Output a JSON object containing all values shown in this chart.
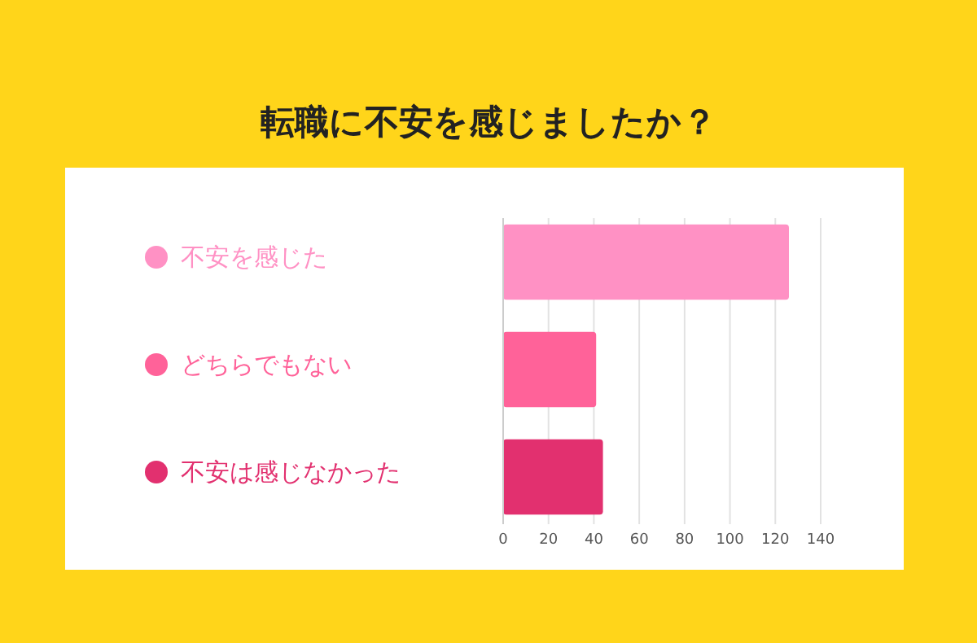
{
  "chart_data": {
    "type": "bar",
    "orientation": "horizontal",
    "title": "転職に不安を感じましたか？",
    "categories": [
      "不安を感じた",
      "どちらでもない",
      "不安は感じなかった"
    ],
    "values": [
      126,
      41,
      44
    ],
    "colors": [
      "#ff91c4",
      "#ff6299",
      "#e2306f"
    ],
    "xlim": [
      0,
      140
    ],
    "xticks": [
      0,
      20,
      40,
      60,
      80,
      100,
      120,
      140
    ],
    "grid": "x"
  }
}
